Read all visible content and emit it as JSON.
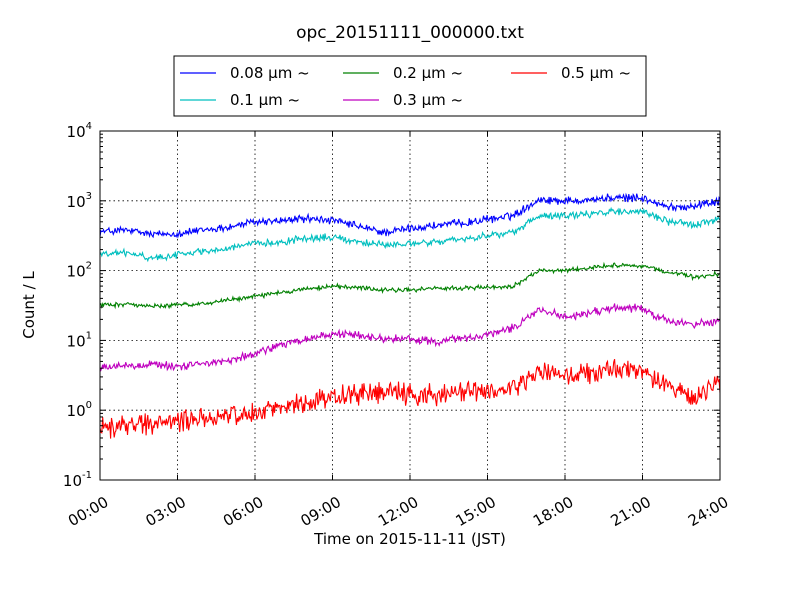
{
  "chart_data": {
    "type": "line",
    "title": "opc_20151111_000000.txt",
    "xlabel": "Time on 2015-11-11 (JST)",
    "ylabel": "Count / L",
    "x_range_hours": [
      0,
      24
    ],
    "x_ticks": [
      "00:00",
      "03:00",
      "06:00",
      "09:00",
      "12:00",
      "15:00",
      "18:00",
      "21:00",
      "24:00"
    ],
    "y_scale": "log",
    "ylim": [
      0.1,
      10000
    ],
    "y_ticks": [
      {
        "base": "10",
        "exp": "-1"
      },
      {
        "base": "10",
        "exp": "0"
      },
      {
        "base": "10",
        "exp": "1"
      },
      {
        "base": "10",
        "exp": "2"
      },
      {
        "base": "10",
        "exp": "3"
      },
      {
        "base": "10",
        "exp": "4"
      }
    ],
    "grid": true,
    "legend_position": "top-center",
    "x_hours": [
      0,
      1,
      2,
      3,
      4,
      5,
      6,
      7,
      8,
      9,
      10,
      11,
      12,
      13,
      14,
      15,
      16,
      17,
      18,
      19,
      20,
      21,
      22,
      23,
      24
    ],
    "series": [
      {
        "name": "0.08 μm ~",
        "color": "#0000ff",
        "noise": 0.07,
        "values": [
          360,
          380,
          330,
          340,
          380,
          420,
          500,
          520,
          560,
          520,
          430,
          350,
          400,
          440,
          480,
          540,
          620,
          1050,
          1000,
          1050,
          1100,
          1100,
          800,
          850,
          1000
        ]
      },
      {
        "name": "0.1 μm ~",
        "color": "#00bfbf",
        "noise": 0.06,
        "values": [
          170,
          180,
          150,
          170,
          190,
          210,
          240,
          260,
          290,
          300,
          260,
          230,
          240,
          260,
          280,
          320,
          350,
          600,
          600,
          650,
          700,
          700,
          500,
          450,
          560
        ]
      },
      {
        "name": "0.2 μm ~",
        "color": "#008000",
        "noise": 0.04,
        "values": [
          32,
          33,
          31,
          32,
          34,
          38,
          43,
          48,
          55,
          60,
          57,
          52,
          53,
          55,
          56,
          57,
          60,
          100,
          100,
          110,
          120,
          115,
          95,
          80,
          90
        ]
      },
      {
        "name": "0.3 μm ~",
        "color": "#bf00bf",
        "noise": 0.07,
        "values": [
          4,
          4.3,
          4.6,
          4.2,
          4.6,
          5.2,
          6.5,
          8.5,
          10.5,
          12.5,
          12,
          10.5,
          10.5,
          9.5,
          10.5,
          12,
          15,
          27,
          22,
          25,
          30,
          28,
          19,
          17,
          19
        ]
      },
      {
        "name": "0.5 μm ~",
        "color": "#ff0000",
        "noise": 0.18,
        "values": [
          0.55,
          0.6,
          0.65,
          0.7,
          0.75,
          0.8,
          0.95,
          1.1,
          1.3,
          1.6,
          1.7,
          1.8,
          1.7,
          1.7,
          1.8,
          1.8,
          2.0,
          3.5,
          3.0,
          3.4,
          3.8,
          3.5,
          2.2,
          1.5,
          2.4
        ]
      }
    ]
  }
}
